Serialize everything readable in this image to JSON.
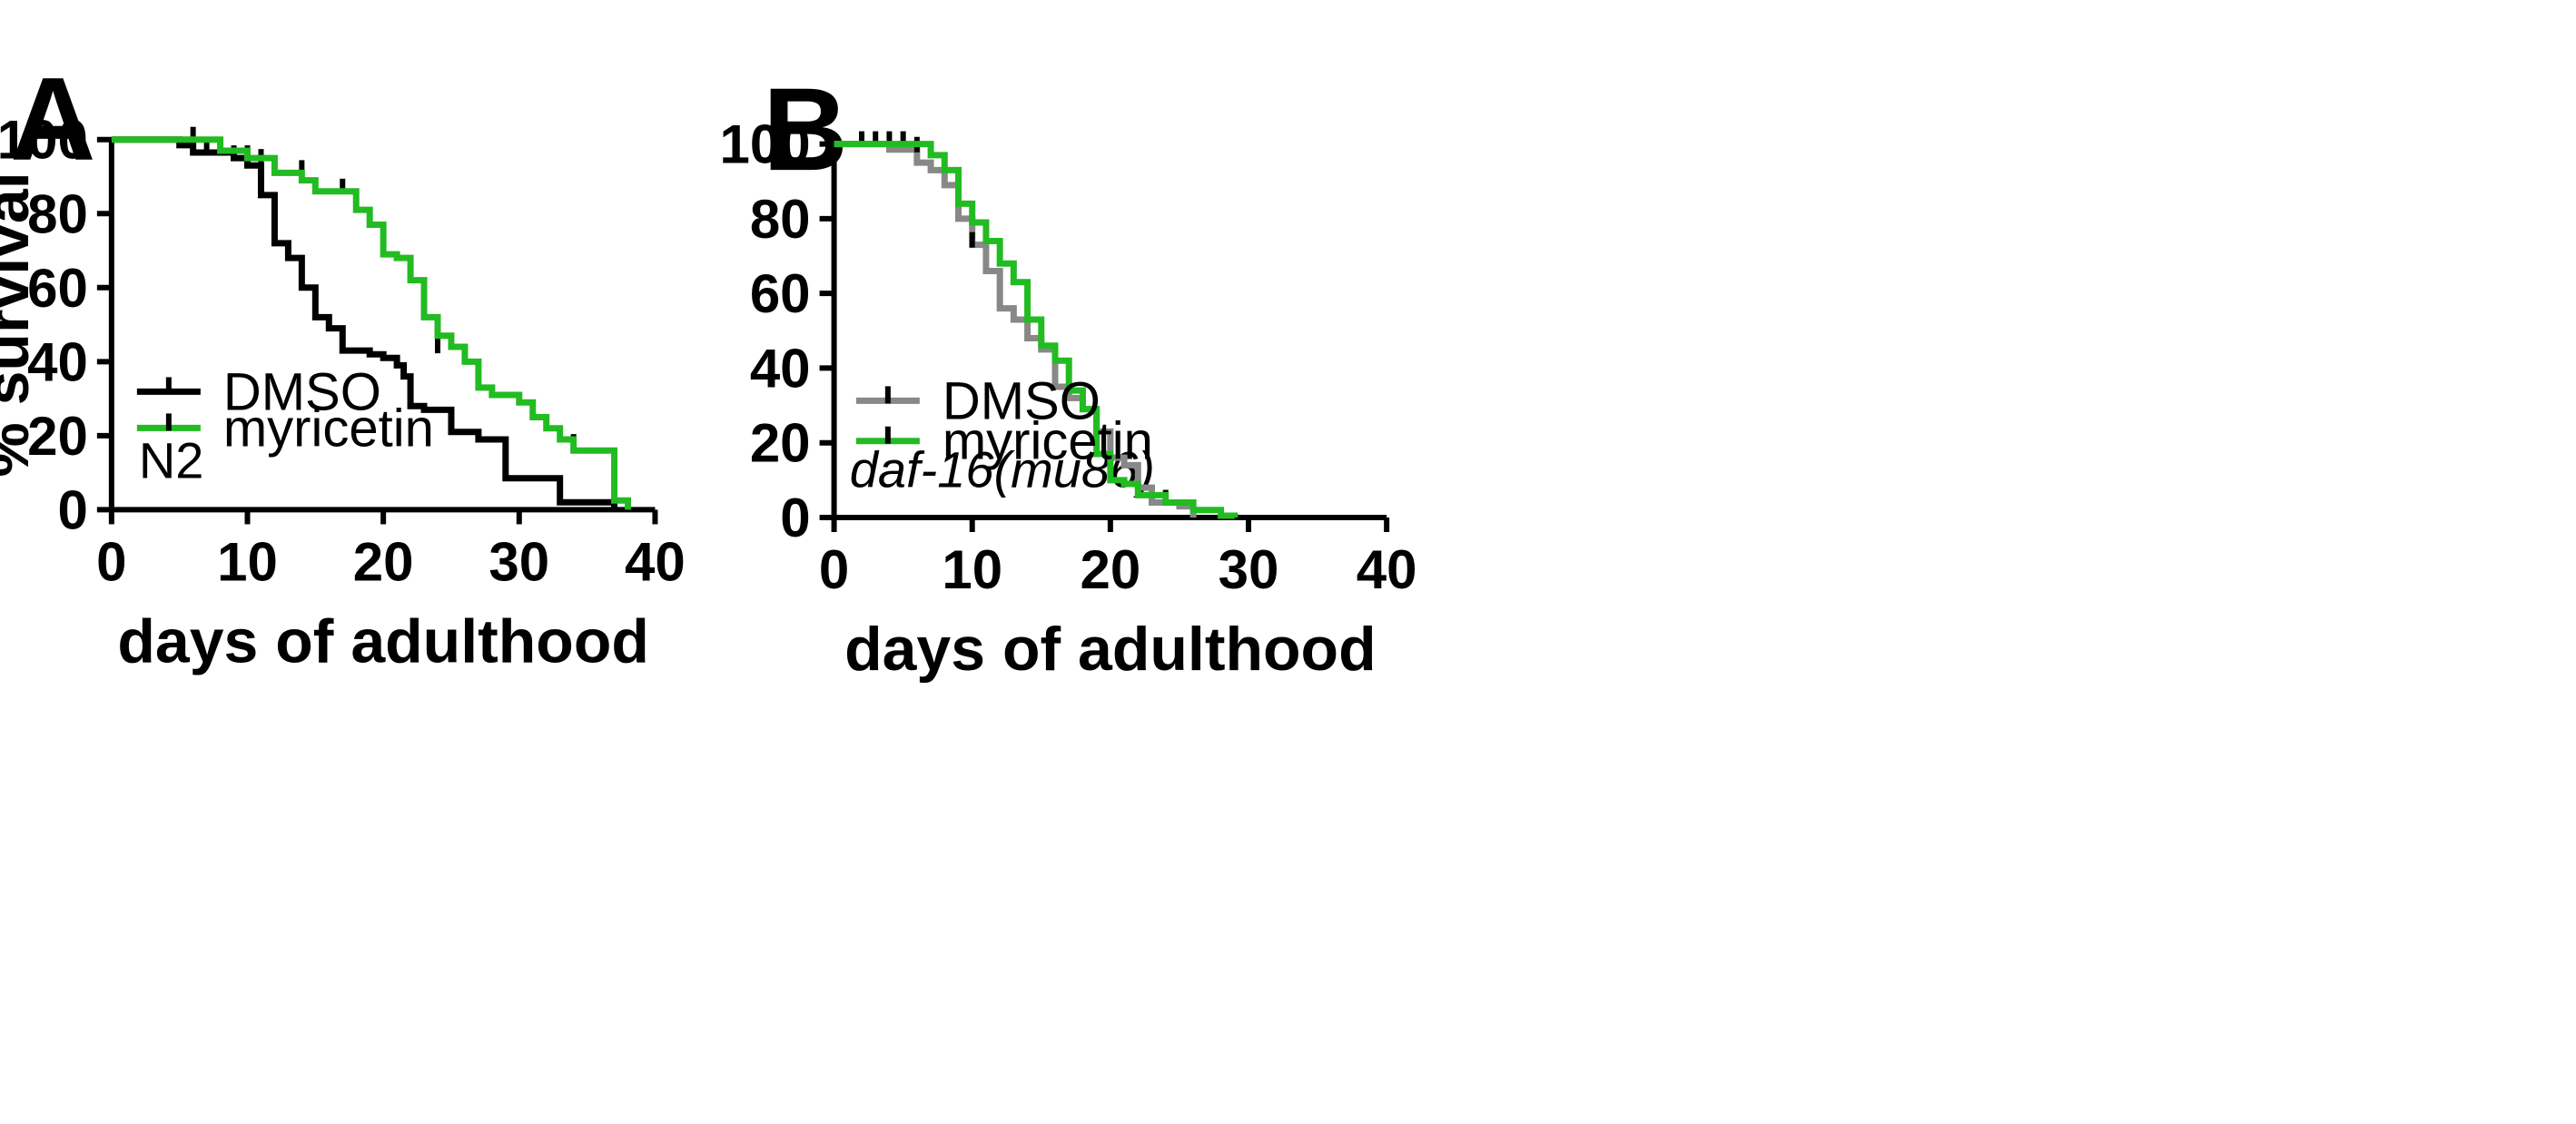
{
  "chart_data": [
    {
      "type": "line",
      "panel_label": "A",
      "xlabel": "days of adulthood",
      "ylabel": "% survival",
      "xlim": [
        0,
        40
      ],
      "ylim": [
        0,
        100
      ],
      "xticks": [
        0,
        10,
        20,
        30,
        40
      ],
      "yticks": [
        0,
        20,
        40,
        60,
        80,
        100
      ],
      "annotation": "N2",
      "legend_position": "lower-left",
      "series": [
        {
          "name": "DMSO",
          "color": "#000000",
          "steps": [
            [
              0,
              100
            ],
            [
              5,
              98.5
            ],
            [
              6,
              96.5
            ],
            [
              9,
              95
            ],
            [
              10,
              93
            ],
            [
              11,
              85
            ],
            [
              12,
              72
            ],
            [
              13,
              68
            ],
            [
              14,
              60
            ],
            [
              15,
              52
            ],
            [
              16,
              49
            ],
            [
              17,
              43
            ],
            [
              19,
              42
            ],
            [
              20,
              41
            ],
            [
              21,
              39
            ],
            [
              21.5,
              36
            ],
            [
              22,
              28
            ],
            [
              23,
              27
            ],
            [
              25,
              21
            ],
            [
              27,
              19
            ],
            [
              29,
              8.5
            ],
            [
              33,
              2
            ],
            [
              37,
              0
            ]
          ],
          "censors": [
            [
              6,
              100
            ],
            [
              7,
              96.5
            ],
            [
              8,
              96.5
            ],
            [
              9,
              95
            ],
            [
              10,
              95
            ],
            [
              11,
              94
            ],
            [
              14,
              91
            ],
            [
              17,
              86
            ],
            [
              24,
              43
            ],
            [
              34,
              17
            ]
          ]
        },
        {
          "name": "myricetin",
          "color": "#22bb22",
          "steps": [
            [
              0,
              100
            ],
            [
              8,
              97
            ],
            [
              10,
              95
            ],
            [
              12,
              91
            ],
            [
              14,
              89
            ],
            [
              15,
              86
            ],
            [
              18,
              81
            ],
            [
              19,
              77
            ],
            [
              20,
              69
            ],
            [
              21,
              68
            ],
            [
              22,
              62
            ],
            [
              23,
              52
            ],
            [
              24,
              47
            ],
            [
              25,
              44
            ],
            [
              26,
              40
            ],
            [
              27,
              33
            ],
            [
              28,
              31
            ],
            [
              30,
              29
            ],
            [
              31,
              25
            ],
            [
              32,
              22
            ],
            [
              33,
              19
            ],
            [
              34,
              16
            ],
            [
              37,
              2.5
            ],
            [
              38,
              0
            ]
          ],
          "censors": [
            [
              10,
              95
            ],
            [
              11,
              94
            ],
            [
              14,
              91
            ],
            [
              17,
              86
            ],
            [
              24,
              43
            ],
            [
              34,
              17
            ]
          ]
        }
      ]
    },
    {
      "type": "line",
      "panel_label": "B",
      "xlabel": "days of adulthood",
      "ylabel": "",
      "xlim": [
        0,
        40
      ],
      "ylim": [
        0,
        100
      ],
      "xticks": [
        0,
        10,
        20,
        30,
        40
      ],
      "yticks": [
        0,
        20,
        40,
        60,
        80,
        100
      ],
      "annotation": "daf-16(mu86)",
      "legend_position": "lower-left",
      "series": [
        {
          "name": "DMSO",
          "color": "#888888",
          "steps": [
            [
              0,
              100
            ],
            [
              4,
              98.5
            ],
            [
              6,
              95
            ],
            [
              7,
              93
            ],
            [
              8,
              89
            ],
            [
              9,
              80
            ],
            [
              10,
              73
            ],
            [
              11,
              66
            ],
            [
              12,
              56
            ],
            [
              13,
              53
            ],
            [
              14,
              48
            ],
            [
              15,
              45
            ],
            [
              16,
              35
            ],
            [
              17,
              32
            ],
            [
              18,
              29
            ],
            [
              19,
              23
            ],
            [
              20,
              16
            ],
            [
              21,
              14
            ],
            [
              22,
              8
            ],
            [
              23,
              4
            ],
            [
              25,
              3
            ],
            [
              26,
              0
            ]
          ],
          "censors": [
            [
              2,
              100
            ],
            [
              3,
              100
            ],
            [
              4,
              100
            ],
            [
              5,
              100
            ],
            [
              6,
              98.5
            ],
            [
              10,
              73
            ],
            [
              24,
              4
            ]
          ]
        },
        {
          "name": "myricetin",
          "color": "#22bb22",
          "steps": [
            [
              0,
              100
            ],
            [
              7,
              97
            ],
            [
              8,
              93
            ],
            [
              9,
              84
            ],
            [
              10,
              79
            ],
            [
              11,
              74
            ],
            [
              12,
              68
            ],
            [
              13,
              63
            ],
            [
              14,
              53
            ],
            [
              15,
              46
            ],
            [
              16,
              42
            ],
            [
              17,
              34
            ],
            [
              18,
              29
            ],
            [
              19,
              17
            ],
            [
              20,
              10
            ],
            [
              21,
              9
            ],
            [
              22,
              6
            ],
            [
              24,
              4
            ],
            [
              26,
              2
            ],
            [
              28,
              0.5
            ],
            [
              29,
              0
            ]
          ],
          "censors": [
            [
              2,
              100
            ],
            [
              3,
              100
            ],
            [
              4,
              100
            ],
            [
              5,
              100
            ],
            [
              6,
              98.5
            ],
            [
              10,
              73
            ],
            [
              24,
              4
            ]
          ]
        }
      ]
    }
  ]
}
